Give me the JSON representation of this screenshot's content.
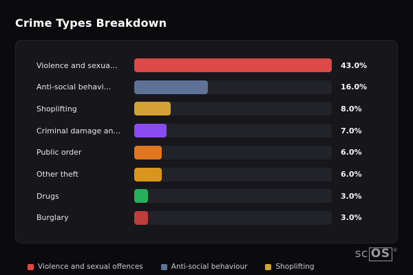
{
  "title": "Crime Types Breakdown",
  "watermark": {
    "prefix": "sc",
    "boxed": "OS",
    "reg": "®"
  },
  "colors": {
    "page_bg": "#0b0b0e",
    "card_bg": "#17171b",
    "card_border": "#232329",
    "track_bg": "#222229",
    "title_text": "#ffffff",
    "label_text": "#e6e6ea",
    "value_text": "#f5f5f7",
    "legend_text": "#c9c9cf",
    "watermark_text": "#98989f"
  },
  "chart_data": {
    "type": "bar",
    "orientation": "horizontal",
    "title": "Crime Types Breakdown",
    "categories": [
      "Violence and sexua...",
      "Anti-social behavi...",
      "Shoplifting",
      "Criminal damage an...",
      "Public order",
      "Other theft",
      "Drugs",
      "Burglary"
    ],
    "values": [
      43.0,
      16.0,
      8.0,
      7.0,
      6.0,
      6.0,
      3.0,
      3.0
    ],
    "value_labels": [
      "43.0%",
      "16.0%",
      "8.0%",
      "7.0%",
      "6.0%",
      "6.0%",
      "3.0%",
      "3.0%"
    ],
    "bar_colors": [
      "#dc4a47",
      "#5d7294",
      "#d3a232",
      "#8a4bf0",
      "#e0761f",
      "#d8961f",
      "#27b05b",
      "#bf3d3a"
    ],
    "xlim": [
      0,
      43
    ],
    "grid": false,
    "legend_position": "bottom",
    "legend": [
      {
        "label": "Violence and sexual offences",
        "color": "#dc4a47"
      },
      {
        "label": "Anti-social behaviour",
        "color": "#5d7294"
      },
      {
        "label": "Shoplifting",
        "color": "#d3a232"
      }
    ]
  }
}
